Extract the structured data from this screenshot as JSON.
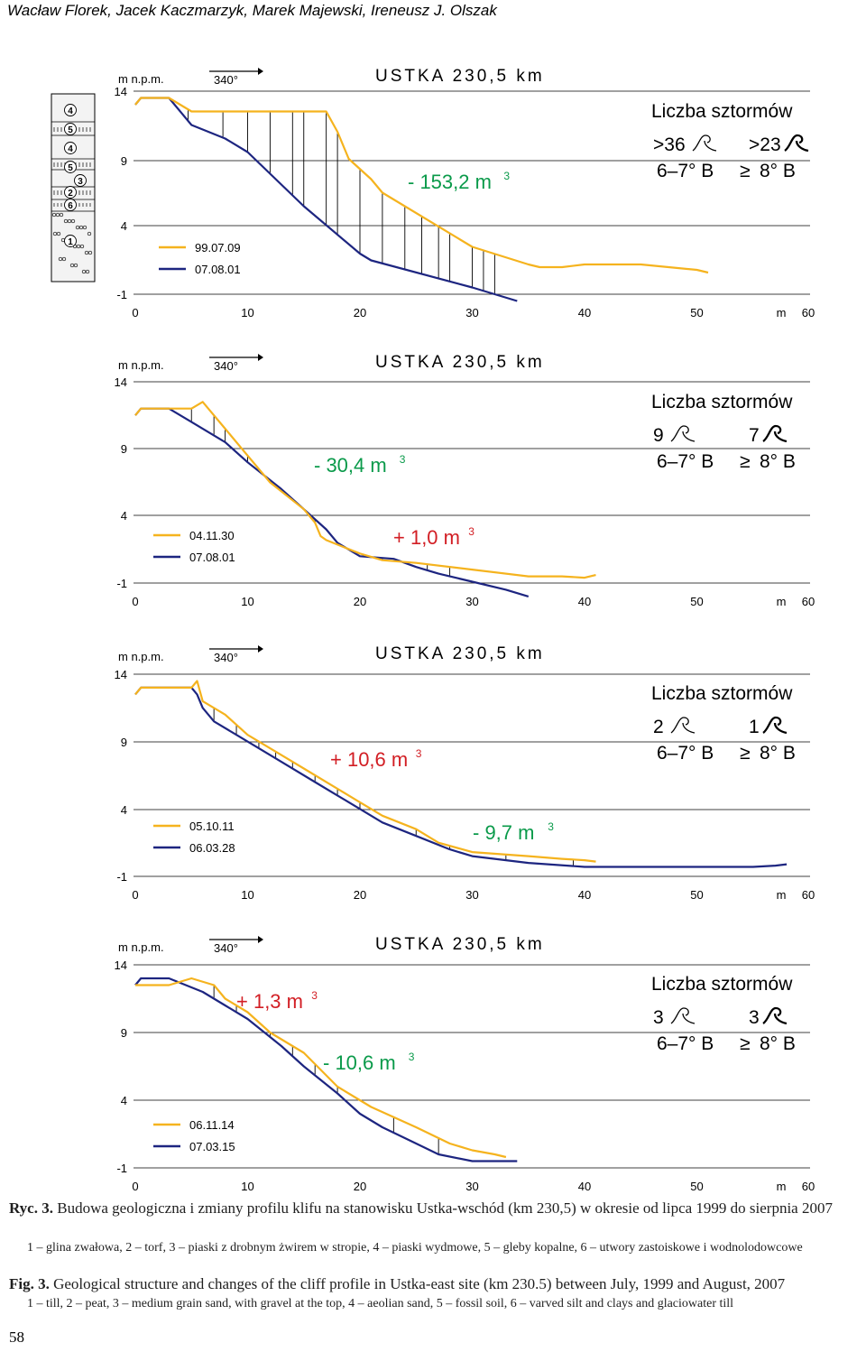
{
  "header": {
    "authors": "Wacław Florek, Jacek Kaczmarzyk, Marek Majewski, Ireneusz J. Olszak"
  },
  "colors": {
    "old_profile": "#f5b31e",
    "new_profile": "#1d2580",
    "green": "#0a9a4a",
    "red": "#d21e24",
    "axis": "#000000",
    "gridline": "#000000"
  },
  "column": {
    "layer_labels": [
      "4",
      "5",
      "4",
      "5",
      "3",
      "2",
      "6",
      "1"
    ]
  },
  "chart_data": [
    {
      "type": "line",
      "title": "USTKA 230,5 km",
      "ylabel": "m  n.p.m.",
      "xunit": "m",
      "direction": "340°",
      "xticks": [
        "0",
        "10",
        "20",
        "30",
        "40",
        "50",
        "60"
      ],
      "yticks": [
        "14",
        "9",
        "4",
        "-1"
      ],
      "xlim": [
        0,
        60
      ],
      "ylim": [
        -1,
        14
      ],
      "series": [
        {
          "name": "99.07.09",
          "color": "#f5b31e",
          "x": [
            0,
            0.5,
            3,
            5,
            10,
            17,
            18,
            19,
            21,
            22,
            30,
            35,
            36,
            38,
            40,
            45,
            50,
            51
          ],
          "y": [
            13,
            13.5,
            13.5,
            12.5,
            12.5,
            12.5,
            11,
            9,
            7.5,
            6.5,
            2.5,
            1.2,
            1,
            1,
            1.2,
            1.2,
            0.8,
            0.6
          ]
        },
        {
          "name": "07.08.01",
          "color": "#1d2580",
          "x": [
            0,
            0.5,
            3,
            5,
            8,
            10,
            15,
            20,
            21,
            30,
            34
          ],
          "y": [
            13,
            13.5,
            13.5,
            11.5,
            10.5,
            9.5,
            5.5,
            2,
            1.5,
            -0.5,
            -1.5
          ]
        }
      ],
      "hatch_x": [
        4.7,
        7.8,
        10,
        12,
        14,
        15,
        17,
        18,
        20,
        22,
        24,
        25.5,
        27,
        28,
        30,
        31,
        32
      ],
      "volume_label": {
        "text": "- 153,2 m",
        "sup": "3",
        "color": "green"
      },
      "storms": {
        "title": "Liczba sztormów",
        "count_small": ">36",
        "count_large": ">23",
        "class_small": "6–7° B",
        "class_large": "8° B"
      }
    },
    {
      "type": "line",
      "title": "USTKA 230,5 km",
      "ylabel": "m  n.p.m.",
      "xunit": "m",
      "direction": "340°",
      "xticks": [
        "0",
        "10",
        "20",
        "30",
        "40",
        "50",
        "60"
      ],
      "yticks": [
        "14",
        "9",
        "4",
        "-1"
      ],
      "xlim": [
        0,
        60
      ],
      "ylim": [
        -1,
        14
      ],
      "series": [
        {
          "name": "04.11.30",
          "color": "#f5b31e",
          "x": [
            0,
            0.5,
            5,
            6,
            8,
            10,
            12,
            15,
            16,
            16.5,
            17,
            20,
            22,
            25,
            30,
            35,
            38,
            40,
            41
          ],
          "y": [
            11.5,
            12,
            12,
            12.5,
            10.5,
            8.5,
            6.5,
            4.5,
            3.5,
            2.5,
            2.2,
            1.2,
            0.7,
            0.5,
            0,
            -0.5,
            -0.5,
            -0.6,
            -0.4
          ]
        },
        {
          "name": "07.08.01",
          "color": "#1d2580",
          "x": [
            0,
            0.5,
            3,
            5,
            8,
            10,
            13,
            15,
            17,
            18,
            20,
            23,
            25,
            27,
            30,
            33,
            35
          ],
          "y": [
            11.5,
            12,
            12,
            11,
            9.5,
            8,
            6,
            4.5,
            3,
            2,
            1,
            0.8,
            0.2,
            -0.3,
            -0.9,
            -1.5,
            -2
          ]
        }
      ],
      "hatch_x": [
        3,
        5,
        7,
        8,
        10,
        12,
        14,
        16,
        22,
        23.5,
        26,
        28
      ],
      "volume_labels": [
        {
          "text": "- 30,4 m",
          "sup": "3",
          "color": "green"
        },
        {
          "text": "+ 1,0 m",
          "sup": "3",
          "color": "red"
        }
      ],
      "storms": {
        "title": "Liczba sztormów",
        "count_small": "9",
        "count_large": "7",
        "class_small": "6–7° B",
        "class_large": "8° B"
      }
    },
    {
      "type": "line",
      "title": "USTKA 230,5 km",
      "ylabel": "m  n.p.m.",
      "xunit": "m",
      "direction": "340°",
      "xticks": [
        "0",
        "10",
        "20",
        "30",
        "40",
        "50",
        "60"
      ],
      "yticks": [
        "14",
        "9",
        "4",
        "-1"
      ],
      "xlim": [
        0,
        60
      ],
      "ylim": [
        -1,
        14
      ],
      "series": [
        {
          "name": "05.10.11",
          "color": "#f5b31e",
          "x": [
            0,
            0.5,
            5,
            5.5,
            6,
            8,
            10,
            13,
            15,
            18,
            20,
            22,
            25,
            27,
            30,
            35,
            38,
            40,
            41
          ],
          "y": [
            12.5,
            13,
            13,
            13.5,
            12,
            11,
            9.5,
            8,
            7,
            5.5,
            4.5,
            3.5,
            2.5,
            1.5,
            0.8,
            0.5,
            0.3,
            0.2,
            0.1
          ]
        },
        {
          "name": "06.03.28",
          "color": "#1d2580",
          "x": [
            0,
            0.5,
            5,
            5.5,
            6,
            7,
            9,
            11,
            13,
            16,
            18,
            20,
            22,
            25,
            28,
            30,
            35,
            40,
            42,
            45,
            50,
            55,
            57,
            58
          ],
          "y": [
            12.5,
            13,
            13,
            12.5,
            11.5,
            10.5,
            9.5,
            8.5,
            7.5,
            6,
            5,
            4,
            3,
            2,
            1,
            0.5,
            0,
            -0.3,
            -0.3,
            -0.3,
            -0.3,
            -0.3,
            -0.2,
            -0.1
          ]
        }
      ],
      "hatch_x": [
        7,
        9,
        11,
        12.5,
        14,
        16,
        18,
        20,
        25,
        28,
        33,
        39
      ],
      "volume_labels": [
        {
          "text": "+ 10,6 m",
          "sup": "3",
          "color": "red"
        },
        {
          "text": "- 9,7 m",
          "sup": "3",
          "color": "green"
        }
      ],
      "storms": {
        "title": "Liczba sztormów",
        "count_small": "2",
        "count_large": "1",
        "class_small": "6–7° B",
        "class_large": "8° B"
      }
    },
    {
      "type": "line",
      "title": "USTKA 230,5 km",
      "ylabel": "m  n.p.m.",
      "xunit": "m",
      "direction": "340°",
      "xticks": [
        "0",
        "10",
        "20",
        "30",
        "40",
        "50",
        "60"
      ],
      "yticks": [
        "14",
        "9",
        "4",
        "-1"
      ],
      "xlim": [
        0,
        60
      ],
      "ylim": [
        -1,
        14
      ],
      "series": [
        {
          "name": "06.11.14",
          "color": "#f5b31e",
          "x": [
            0,
            3,
            5,
            7,
            8,
            10,
            12,
            15,
            18,
            21,
            25,
            28,
            30,
            32,
            33
          ],
          "y": [
            12.5,
            12.5,
            13,
            12.5,
            11.5,
            10.5,
            9,
            7.5,
            5,
            3.5,
            2,
            0.8,
            0.3,
            0,
            -0.2
          ]
        },
        {
          "name": "07.03.15",
          "color": "#1d2580",
          "x": [
            0,
            0.5,
            3,
            6,
            8,
            10,
            13,
            15,
            18,
            20,
            22,
            25,
            27,
            30,
            32,
            34
          ],
          "y": [
            12.5,
            13,
            13,
            12,
            11,
            10,
            8,
            6.5,
            4.5,
            3,
            2,
            0.8,
            0,
            -0.5,
            -0.5,
            -0.5
          ]
        }
      ],
      "hatch_x": [
        7,
        9,
        12,
        14,
        16,
        18,
        23,
        27
      ],
      "volume_labels": [
        {
          "text": "+ 1,3 m",
          "sup": "3",
          "color": "red"
        },
        {
          "text": "- 10,6 m",
          "sup": "3",
          "color": "green"
        }
      ],
      "storms": {
        "title": "Liczba sztormów",
        "count_small": "3",
        "count_large": "3",
        "class_small": "6–7° B",
        "class_large": "8° B"
      }
    }
  ],
  "caption": {
    "pl_label": "Ryc. 3.",
    "pl_text": " Budowa geologiczna i zmiany profilu klifu na stanowisku Ustka-wschód (km 230,5) w okresie od lipca 1999 do sierpnia 2007",
    "pl_legend": "1 – glina zwałowa, 2 – torf, 3 – piaski z drobnym żwirem w stropie, 4 – piaski wydmowe, 5 – gleby kopalne, 6 – utwory zastoiskowe i wodnolodowcowe",
    "en_label": "Fig. 3.",
    "en_text": " Geological structure and changes of the cliff profile in Ustka-east site (km 230.5) between July, 1999 and August, 2007",
    "en_legend": "1 – till, 2 – peat, 3 – medium grain sand, with gravel at the top, 4 – aeolian sand, 5 – fossil soil, 6 – varved silt and clays and glaciowater till"
  },
  "page_number": "58"
}
